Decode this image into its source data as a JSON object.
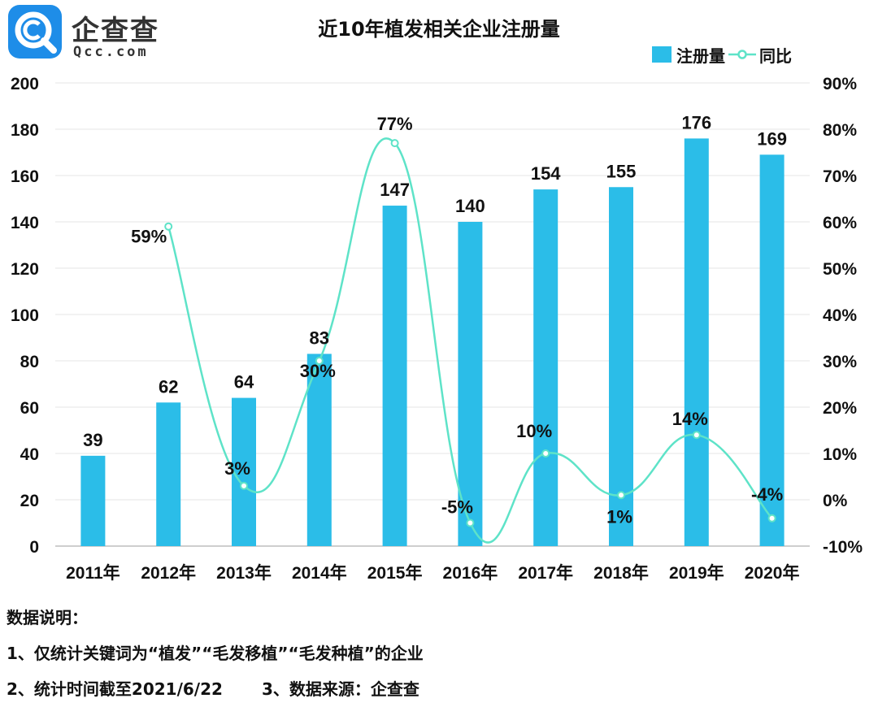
{
  "logo": {
    "cn": "企查查",
    "en": "Qcc.com",
    "brand_color": "#1e8de8"
  },
  "chart_data": {
    "type": "bar",
    "title": "近10年植发相关企业注册量",
    "categories": [
      "2011年",
      "2012年",
      "2013年",
      "2014年",
      "2015年",
      "2016年",
      "2017年",
      "2018年",
      "2019年",
      "2020年"
    ],
    "series": [
      {
        "name": "注册量",
        "kind": "bar",
        "axis": "left",
        "color": "#2bbde8",
        "values": [
          39,
          62,
          64,
          83,
          147,
          140,
          154,
          155,
          176,
          169
        ],
        "labels": [
          "39",
          "62",
          "64",
          "83",
          "147",
          "140",
          "154",
          "155",
          "176",
          "169"
        ]
      },
      {
        "name": "同比",
        "kind": "line",
        "axis": "right",
        "color": "#5ee3c8",
        "values": [
          null,
          59,
          3,
          30,
          77,
          -5,
          10,
          1,
          14,
          -4
        ],
        "labels": [
          "",
          "59%",
          "3%",
          "30%",
          "77%",
          "-5%",
          "10%",
          "1%",
          "14%",
          "-4%"
        ]
      }
    ],
    "ylim": [
      0,
      200
    ],
    "y_ticks": [
      "0",
      "20",
      "40",
      "60",
      "80",
      "100",
      "120",
      "140",
      "160",
      "180",
      "200"
    ],
    "y2lim": [
      -10,
      90
    ],
    "y2_ticks": [
      "-10%",
      "0%",
      "10%",
      "20%",
      "30%",
      "40%",
      "50%",
      "60%",
      "70%",
      "80%",
      "90%"
    ],
    "legend_position": "top-right",
    "grid": true
  },
  "notes": {
    "heading": "数据说明：",
    "line1": "1、仅统计关键词为“植发”“毛发移植”“毛发种植”的企业",
    "line2a": "2、统计时间截至2021/6/22",
    "line2b": "3、数据来源：企查查"
  }
}
